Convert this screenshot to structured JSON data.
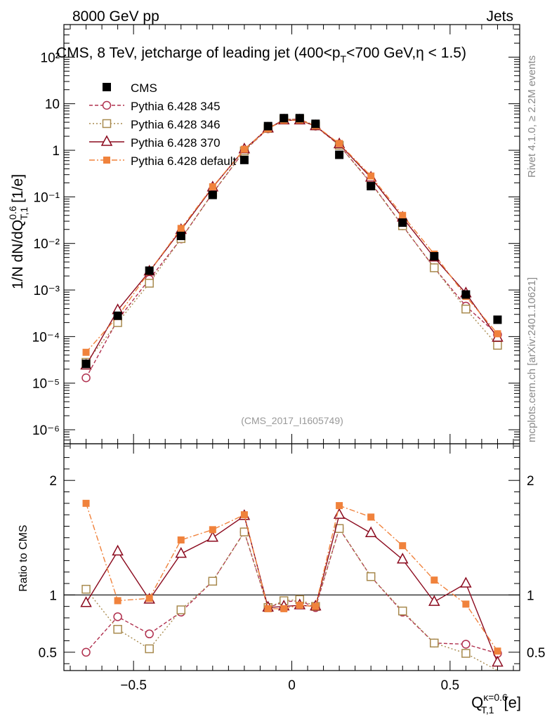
{
  "header": {
    "left": "8000 GeV pp",
    "right": "Jets",
    "title": "CMS, 8 TeV, jetcharge of leading jet (400<p_T<700 GeV,η < 1.5)",
    "side_rivet": "Rivet 4.1.0, ≥ 2.2M events",
    "side_mcplots": "mcplots.cern.ch [arXiv:2401.10621]",
    "watermark": "(CMS_2017_I1605749)"
  },
  "chart_data": [
    {
      "type": "scatter",
      "panel": "main",
      "yscale": "log",
      "ylabel": "1/N dN/dQ^{0.6}_{T,1} [1/e]",
      "xlim": [
        -0.72,
        0.72
      ],
      "ylim": [
        5e-07,
        500
      ],
      "y_ticks": [
        {
          "v": 1e-06,
          "label": "10⁻⁶"
        },
        {
          "v": 1e-05,
          "label": "10⁻⁵"
        },
        {
          "v": 0.0001,
          "label": "10⁻⁴"
        },
        {
          "v": 0.001,
          "label": "10⁻³"
        },
        {
          "v": 0.01,
          "label": "10⁻²"
        },
        {
          "v": 0.1,
          "label": "10⁻¹"
        },
        {
          "v": 1,
          "label": "1"
        },
        {
          "v": 10,
          "label": "10"
        },
        {
          "v": 100,
          "label": "10²"
        }
      ],
      "x": [
        -0.65,
        -0.55,
        -0.45,
        -0.35,
        -0.25,
        -0.15,
        -0.075,
        -0.025,
        0.025,
        0.075,
        0.15,
        0.25,
        0.35,
        0.45,
        0.55,
        0.65
      ],
      "series": [
        {
          "name": "CMS",
          "style": "data",
          "color": "#000000",
          "values": [
            2.6e-05,
            0.00028,
            0.0026,
            0.0145,
            0.11,
            0.62,
            3.3,
            4.9,
            4.9,
            3.7,
            0.8,
            0.17,
            0.028,
            0.0053,
            0.0008,
            0.00023
          ]
        },
        {
          "name": "Pythia 6.428 345",
          "style": "circle-dashed",
          "color": "#b0304e",
          "values": [
            1.3e-05,
            0.00023,
            0.0017,
            0.0125,
            0.12,
            0.98,
            2.9,
            4.6,
            4.65,
            3.3,
            1.28,
            0.2,
            0.024,
            0.003,
            0.00045,
            0.00011
          ]
        },
        {
          "name": "Pythia 6.428 346",
          "style": "square-dotted",
          "color": "#a88a4e",
          "values": [
            2.8e-05,
            0.0002,
            0.0014,
            0.0127,
            0.12,
            0.97,
            2.95,
            4.6,
            4.65,
            3.35,
            1.28,
            0.195,
            0.024,
            0.003,
            0.00039,
            6.5e-05
          ]
        },
        {
          "name": "Pythia 6.428 370",
          "style": "triangle-solid",
          "color": "#8b0a1e",
          "values": [
            2.4e-05,
            0.00037,
            0.0025,
            0.0195,
            0.16,
            1.05,
            2.95,
            4.4,
            4.4,
            3.3,
            1.35,
            0.26,
            0.036,
            0.005,
            0.00085,
            9.5e-05
          ]
        },
        {
          "name": "Pythia 6.428 default",
          "style": "filled-square-dashdot",
          "color": "#f0823c",
          "values": [
            4.6e-05,
            0.00027,
            0.0025,
            0.021,
            0.165,
            1.05,
            2.9,
            4.4,
            4.45,
            3.35,
            1.4,
            0.28,
            0.04,
            0.0059,
            0.00073,
            0.000115
          ]
        }
      ],
      "legend": [
        "CMS",
        "Pythia 6.428 345",
        "Pythia 6.428 346",
        "Pythia 6.428 370",
        "Pythia 6.428 default"
      ]
    },
    {
      "type": "line",
      "panel": "ratio",
      "ylabel": "Ratio to CMS",
      "xlabel": "Q^{κ=0.6}_{T,1} [e]",
      "xlim": [
        -0.72,
        0.72
      ],
      "ylim": [
        0.34,
        2.32
      ],
      "y_ticks": [
        {
          "v": 0.5,
          "label": "0.5"
        },
        {
          "v": 1,
          "label": "1"
        },
        {
          "v": 2,
          "label": "2"
        }
      ],
      "x_ticks": [
        {
          "v": -0.5,
          "label": "−0.5"
        },
        {
          "v": 0,
          "label": "0"
        },
        {
          "v": 0.5,
          "label": "0.5"
        }
      ],
      "reference": 1,
      "x": [
        -0.65,
        -0.55,
        -0.45,
        -0.35,
        -0.25,
        -0.15,
        -0.075,
        -0.025,
        0.025,
        0.075,
        0.15,
        0.25,
        0.35,
        0.45,
        0.55,
        0.65
      ],
      "series": [
        {
          "name": "Pythia 6.428 345",
          "color": "#b0304e",
          "values": [
            0.5,
            0.81,
            0.66,
            0.85,
            1.12,
            1.55,
            0.89,
            0.94,
            0.95,
            0.89,
            1.58,
            1.16,
            0.85,
            0.58,
            0.57,
            0.49
          ]
        },
        {
          "name": "Pythia 6.428 346",
          "color": "#a88a4e",
          "values": [
            1.05,
            0.7,
            0.53,
            0.87,
            1.12,
            1.55,
            0.89,
            0.95,
            0.96,
            0.9,
            1.58,
            1.16,
            0.86,
            0.58,
            0.49,
            0.28
          ]
        },
        {
          "name": "Pythia 6.428 370",
          "color": "#8b0a1e",
          "values": [
            0.93,
            1.38,
            0.96,
            1.36,
            1.5,
            1.69,
            0.89,
            0.9,
            0.91,
            0.9,
            1.7,
            1.54,
            1.31,
            0.94,
            1.1,
            0.41
          ]
        },
        {
          "name": "Pythia 6.428 default",
          "color": "#f0823c",
          "values": [
            1.8,
            0.95,
            0.97,
            1.48,
            1.57,
            1.7,
            0.88,
            0.88,
            0.91,
            0.9,
            1.78,
            1.68,
            1.43,
            1.13,
            0.92,
            0.51
          ]
        }
      ]
    }
  ]
}
